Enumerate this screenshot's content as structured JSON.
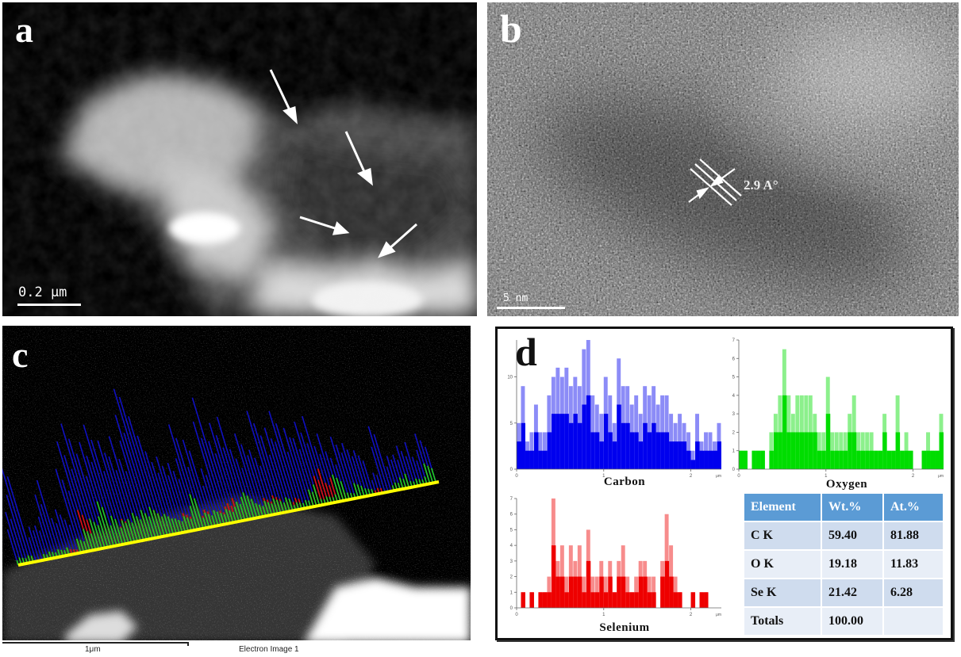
{
  "figure": {
    "panels": {
      "a": {
        "letter": "a",
        "type": "STEM dark-field micrograph",
        "scale_bar": "0.2 μm",
        "annotations": [
          "arrow",
          "arrow",
          "arrow",
          "arrow"
        ]
      },
      "b": {
        "letter": "b",
        "type": "HRTEM lattice image",
        "scale_bar": "5 nm",
        "lattice_spacing": "2.9 A°"
      },
      "c": {
        "letter": "c",
        "type": "EDS line scan over electron image",
        "scale_bar": "1μm",
        "image_label": "Electron Image 1",
        "line_colors": {
          "carbon": "#1010c0",
          "oxygen": "#22cc22",
          "selenium": "#dd1010",
          "scan_line": "#ffff00"
        }
      },
      "d": {
        "letter": "d",
        "x_unit": "μm",
        "table": {
          "headers": [
            "Element",
            "Wt.%",
            "At.%"
          ],
          "rows": [
            [
              "C K",
              "59.40",
              "81.88"
            ],
            [
              "O K",
              "19.18",
              "11.83"
            ],
            [
              "Se K",
              "21.42",
              "6.28"
            ],
            [
              "Totals",
              "100.00",
              ""
            ]
          ],
          "header_color": "#5b9bd5"
        }
      }
    }
  },
  "chart_data": [
    {
      "type": "bar",
      "title": "Carbon",
      "xlabel": "μm",
      "ylabel": "",
      "xlim": [
        0,
        2.35
      ],
      "ylim": [
        0,
        14
      ],
      "x_ticks": [
        "0",
        "1",
        "2"
      ],
      "y_ticks": [
        "0",
        "5",
        "10"
      ],
      "color": "#0000ee",
      "x": [
        0.0,
        0.05,
        0.1,
        0.15,
        0.2,
        0.25,
        0.3,
        0.35,
        0.4,
        0.45,
        0.5,
        0.55,
        0.6,
        0.65,
        0.7,
        0.75,
        0.8,
        0.85,
        0.9,
        0.95,
        1.0,
        1.05,
        1.1,
        1.15,
        1.2,
        1.25,
        1.3,
        1.35,
        1.4,
        1.45,
        1.5,
        1.55,
        1.6,
        1.65,
        1.7,
        1.75,
        1.8,
        1.85,
        1.9,
        1.95,
        2.0,
        2.05,
        2.1,
        2.15,
        2.2,
        2.25,
        2.3
      ],
      "values": [
        5,
        9,
        3,
        4,
        7,
        4,
        4,
        8,
        10,
        11,
        10,
        11,
        9,
        10,
        9,
        13,
        14,
        8,
        7,
        6,
        10,
        8,
        5,
        12,
        9,
        9,
        7,
        8,
        6,
        9,
        8,
        9,
        7,
        8,
        8,
        6,
        5,
        6,
        5,
        4,
        2,
        6,
        3,
        4,
        4,
        3,
        5
      ]
    },
    {
      "type": "bar",
      "title": "Oxygen",
      "xlabel": "μm",
      "ylabel": "",
      "xlim": [
        0,
        2.35
      ],
      "ylim": [
        0,
        7
      ],
      "x_ticks": [
        "0",
        "1",
        "2"
      ],
      "y_ticks": [
        "0",
        "1",
        "2",
        "3",
        "4",
        "5",
        "6",
        "7"
      ],
      "color": "#00dd00",
      "x": [
        0.0,
        0.05,
        0.1,
        0.15,
        0.2,
        0.25,
        0.3,
        0.35,
        0.4,
        0.45,
        0.5,
        0.55,
        0.6,
        0.65,
        0.7,
        0.75,
        0.8,
        0.85,
        0.9,
        0.95,
        1.0,
        1.05,
        1.1,
        1.15,
        1.2,
        1.25,
        1.3,
        1.35,
        1.4,
        1.45,
        1.5,
        1.55,
        1.6,
        1.65,
        1.7,
        1.75,
        1.8,
        1.85,
        1.9,
        1.95,
        2.0,
        2.05,
        2.1,
        2.15,
        2.2,
        2.25,
        2.3
      ],
      "values": [
        1,
        1,
        0,
        1,
        1,
        1,
        0,
        2,
        3,
        4,
        6.5,
        4,
        3,
        4,
        4,
        4,
        4,
        3,
        2,
        2,
        5,
        2,
        2,
        2,
        2,
        3,
        4,
        2,
        2,
        2,
        2,
        1,
        1,
        3,
        1,
        1,
        4,
        1,
        2,
        1,
        0,
        0,
        1,
        2,
        1,
        1,
        3
      ]
    },
    {
      "type": "bar",
      "title": "Selenium",
      "xlabel": "μm",
      "ylabel": "",
      "xlim": [
        0,
        2.35
      ],
      "ylim": [
        0,
        7
      ],
      "x_ticks": [
        "0",
        "1",
        "2"
      ],
      "y_ticks": [
        "0",
        "1",
        "2",
        "3",
        "4",
        "5",
        "6",
        "7"
      ],
      "color": "#ee0000",
      "x": [
        0.0,
        0.05,
        0.1,
        0.15,
        0.2,
        0.25,
        0.3,
        0.35,
        0.4,
        0.45,
        0.5,
        0.55,
        0.6,
        0.65,
        0.7,
        0.75,
        0.8,
        0.85,
        0.9,
        0.95,
        1.0,
        1.05,
        1.1,
        1.15,
        1.2,
        1.25,
        1.3,
        1.35,
        1.4,
        1.45,
        1.5,
        1.55,
        1.6,
        1.65,
        1.7,
        1.75,
        1.8,
        1.85,
        1.9,
        1.95,
        2.0,
        2.05,
        2.1,
        2.15,
        2.2,
        2.25,
        2.3
      ],
      "values": [
        0,
        1,
        0,
        1,
        0,
        1,
        1,
        2,
        7,
        3,
        4,
        2,
        4,
        3,
        4,
        2,
        5,
        2,
        2,
        3,
        2,
        3,
        1,
        3,
        4,
        2,
        1,
        2,
        3,
        3,
        2,
        2,
        0,
        3,
        6,
        4,
        2,
        1,
        0,
        0,
        1,
        0,
        1,
        1,
        0,
        0,
        0
      ]
    }
  ]
}
